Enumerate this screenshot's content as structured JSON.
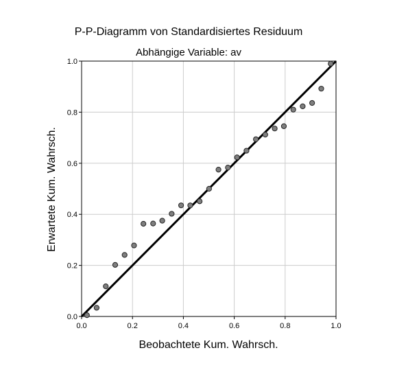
{
  "chart_data": {
    "type": "scatter",
    "title": "P-P-Diagramm von Standardisiertes Residuum",
    "subtitle": "Abhängige Variable: av",
    "xlabel": "Beobachtete Kum. Wahrsch.",
    "ylabel": "Erwartete Kum. Wahrsch.",
    "xlim": [
      0,
      1
    ],
    "ylim": [
      0,
      1
    ],
    "xticks": [
      "0.0",
      "0.2",
      "0.4",
      "0.6",
      "0.8",
      "1.0"
    ],
    "yticks": [
      "0.0",
      "0.2",
      "0.4",
      "0.6",
      "0.8",
      "1.0"
    ],
    "grid": true,
    "reference_line": {
      "from": [
        0,
        0
      ],
      "to": [
        1,
        1
      ]
    },
    "colors": {
      "point_fill": "#7f7f7f",
      "point_stroke": "#222222",
      "line": "#000000",
      "grid": "#cccccc"
    },
    "points": [
      {
        "x": 0.021,
        "y": 0.005
      },
      {
        "x": 0.059,
        "y": 0.034
      },
      {
        "x": 0.095,
        "y": 0.118
      },
      {
        "x": 0.132,
        "y": 0.202
      },
      {
        "x": 0.169,
        "y": 0.241
      },
      {
        "x": 0.206,
        "y": 0.278
      },
      {
        "x": 0.243,
        "y": 0.363
      },
      {
        "x": 0.281,
        "y": 0.364
      },
      {
        "x": 0.317,
        "y": 0.375
      },
      {
        "x": 0.354,
        "y": 0.402
      },
      {
        "x": 0.391,
        "y": 0.435
      },
      {
        "x": 0.427,
        "y": 0.435
      },
      {
        "x": 0.464,
        "y": 0.451
      },
      {
        "x": 0.501,
        "y": 0.5
      },
      {
        "x": 0.538,
        "y": 0.575
      },
      {
        "x": 0.575,
        "y": 0.583
      },
      {
        "x": 0.611,
        "y": 0.623
      },
      {
        "x": 0.648,
        "y": 0.649
      },
      {
        "x": 0.685,
        "y": 0.694
      },
      {
        "x": 0.722,
        "y": 0.712
      },
      {
        "x": 0.759,
        "y": 0.736
      },
      {
        "x": 0.795,
        "y": 0.745
      },
      {
        "x": 0.832,
        "y": 0.81
      },
      {
        "x": 0.869,
        "y": 0.823
      },
      {
        "x": 0.906,
        "y": 0.836
      },
      {
        "x": 0.942,
        "y": 0.892
      },
      {
        "x": 0.979,
        "y": 0.99
      }
    ]
  }
}
